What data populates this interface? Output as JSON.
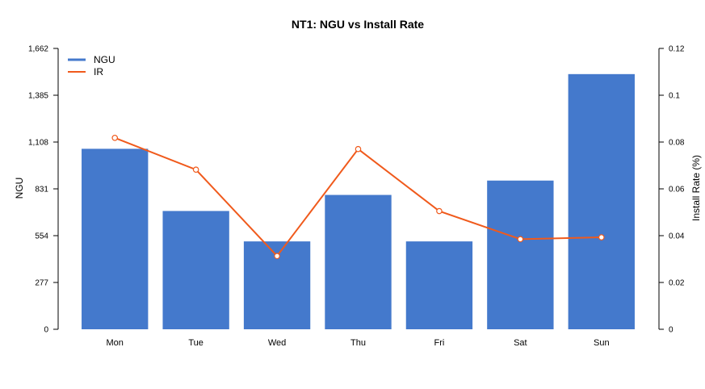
{
  "chart_data": {
    "type": "bar",
    "title": "NT1: NGU vs Install Rate",
    "categories": [
      "Mon",
      "Tue",
      "Wed",
      "Thu",
      "Fri",
      "Sat",
      "Sun"
    ],
    "ylabel": "NGU",
    "y2label": "Install Rate (%)",
    "ylim": [
      0,
      1662
    ],
    "y2lim": [
      0,
      0.12
    ],
    "yticks": [
      "0",
      "277",
      "554",
      "831",
      "1,108",
      "1,385",
      "1,662"
    ],
    "y2ticks": [
      "0",
      "0.02",
      "0.04",
      "0.06",
      "0.08",
      "0.1",
      "0.12"
    ],
    "legend_position": "top-left",
    "grid": false,
    "series": [
      {
        "name": "NGU",
        "type": "bar",
        "color": "#4479CC",
        "axis": "left",
        "values": [
          1068,
          700,
          520,
          795,
          520,
          880,
          1510
        ]
      },
      {
        "name": "IR",
        "type": "line",
        "color": "#F05A1C",
        "axis": "right",
        "values": [
          0.0818,
          0.0682,
          0.0313,
          0.077,
          0.0505,
          0.0385,
          0.0393
        ]
      }
    ]
  }
}
